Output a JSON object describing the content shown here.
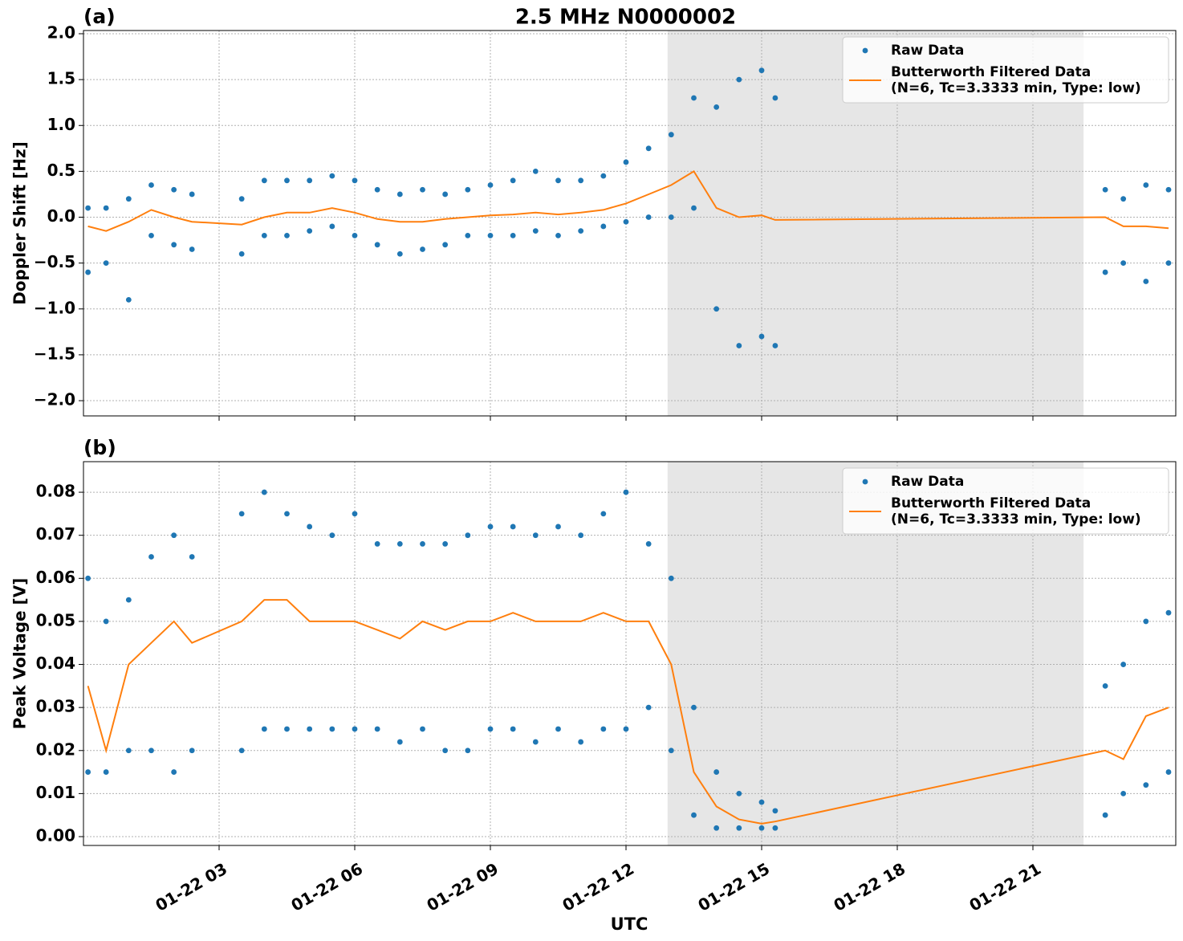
{
  "chart_data": [
    {
      "type": "scatter-line",
      "title": "2.5 MHz N0000002",
      "panel_label": "(a)",
      "y_label": "Doppler Shift [Hz]",
      "xlim": [
        0,
        24.16
      ],
      "ylim": [
        -2.166,
        2.035
      ],
      "xticks": [
        3,
        6,
        9,
        12,
        15,
        18,
        21
      ],
      "yticks": [
        {
          "value": -2.0,
          "label": "−2.0"
        },
        {
          "value": -1.5,
          "label": "−1.5"
        },
        {
          "value": -1.0,
          "label": "−1.0"
        },
        {
          "value": -0.5,
          "label": "−0.5"
        },
        {
          "value": 0.0,
          "label": "0.0"
        },
        0.5,
        {
          "value": 1.0,
          "label": "1.0"
        },
        1.5,
        {
          "value": 2.0,
          "label": "2.0"
        }
      ],
      "grid": true,
      "legend": "upper right",
      "shaded_span": [
        12.92,
        22.12
      ],
      "series": [
        {
          "name": "Raw Data",
          "kind": "scatter",
          "color": "#1f77b4",
          "x": [
            0.1,
            0.1,
            0.5,
            0.5,
            1.0,
            1.0,
            1.5,
            1.5,
            2.0,
            2.0,
            2.4,
            2.4,
            3.5,
            3.5,
            4.0,
            4.0,
            4.5,
            4.5,
            5.0,
            5.0,
            5.5,
            5.5,
            6.0,
            6.0,
            6.5,
            6.5,
            7.0,
            7.0,
            7.5,
            7.5,
            8.0,
            8.0,
            8.5,
            8.5,
            9.0,
            9.0,
            9.5,
            9.5,
            10.0,
            10.0,
            10.5,
            10.5,
            11.0,
            11.0,
            11.5,
            11.5,
            12.0,
            12.0,
            12.5,
            12.5,
            13.0,
            13.0,
            13.5,
            13.5,
            14.0,
            14.0,
            14.5,
            14.5,
            15.0,
            15.0,
            15.3,
            15.3,
            22.6,
            22.6,
            23.0,
            23.0,
            23.5,
            23.5,
            24.0,
            24.0
          ],
          "values": [
            0.1,
            -0.6,
            0.1,
            -0.5,
            0.2,
            -0.9,
            0.35,
            -0.2,
            0.3,
            -0.3,
            0.25,
            -0.35,
            0.2,
            -0.4,
            0.4,
            -0.2,
            0.4,
            -0.2,
            0.4,
            -0.15,
            0.45,
            -0.1,
            0.4,
            -0.2,
            0.3,
            -0.3,
            0.25,
            -0.4,
            0.3,
            -0.35,
            0.25,
            -0.3,
            0.3,
            -0.2,
            0.35,
            -0.2,
            0.4,
            -0.2,
            0.5,
            -0.15,
            0.4,
            -0.2,
            0.4,
            -0.15,
            0.45,
            -0.1,
            0.6,
            -0.05,
            0.75,
            0.0,
            0.9,
            0.0,
            1.3,
            0.1,
            1.2,
            -1.0,
            1.5,
            -1.4,
            1.6,
            -1.3,
            1.3,
            -1.4,
            0.3,
            -0.6,
            0.2,
            -0.5,
            0.35,
            -0.7,
            0.3,
            -0.5
          ]
        },
        {
          "name": "Butterworth Filtered Data\n(N=6, Tc=3.3333 min, Type: low)",
          "kind": "line",
          "color": "#ff7f0e",
          "x": [
            0.1,
            0.5,
            1.0,
            1.5,
            2.0,
            2.4,
            3.5,
            4.0,
            4.5,
            5.0,
            5.5,
            6.0,
            6.5,
            7.0,
            7.5,
            8.0,
            8.5,
            9.0,
            9.5,
            10.0,
            10.5,
            11.0,
            11.5,
            12.0,
            12.5,
            13.0,
            13.5,
            14.0,
            14.5,
            15.0,
            15.3,
            22.6,
            23.0,
            23.5,
            24.0
          ],
          "values": [
            -0.1,
            -0.15,
            -0.05,
            0.08,
            0.0,
            -0.05,
            -0.08,
            0.0,
            0.05,
            0.05,
            0.1,
            0.05,
            -0.02,
            -0.05,
            -0.05,
            -0.02,
            0.0,
            0.02,
            0.03,
            0.05,
            0.03,
            0.05,
            0.08,
            0.15,
            0.25,
            0.35,
            0.5,
            0.1,
            0.0,
            0.02,
            -0.03,
            0.0,
            -0.1,
            -0.1,
            -0.12
          ]
        }
      ]
    },
    {
      "type": "scatter-line",
      "panel_label": "(b)",
      "y_label": "Peak Voltage [V]",
      "x_label": "UTC",
      "xlim": [
        0,
        24.16
      ],
      "ylim": [
        -0.00205,
        0.0871
      ],
      "xticks": [
        {
          "value": 3,
          "label": "01-22 03"
        },
        {
          "value": 6,
          "label": "01-22 06"
        },
        {
          "value": 9,
          "label": "01-22 09"
        },
        {
          "value": 12,
          "label": "01-22 12"
        },
        {
          "value": 15,
          "label": "01-22 15"
        },
        {
          "value": 18,
          "label": "01-22 18"
        },
        {
          "value": 21,
          "label": "01-22 21"
        }
      ],
      "yticks": [
        {
          "value": 0.0,
          "label": "0.00"
        },
        0.01,
        0.02,
        0.03,
        0.04,
        0.05,
        0.06,
        0.07,
        0.08
      ],
      "grid": true,
      "legend": "upper right",
      "shaded_span": [
        12.92,
        22.12
      ],
      "series": [
        {
          "name": "Raw Data",
          "kind": "scatter",
          "color": "#1f77b4",
          "x": [
            0.1,
            0.1,
            0.5,
            0.5,
            1.0,
            1.0,
            1.5,
            1.5,
            2.0,
            2.0,
            2.4,
            2.4,
            3.5,
            3.5,
            4.0,
            4.0,
            4.5,
            4.5,
            5.0,
            5.0,
            5.5,
            5.5,
            6.0,
            6.0,
            6.5,
            6.5,
            7.0,
            7.0,
            7.5,
            7.5,
            8.0,
            8.0,
            8.5,
            8.5,
            9.0,
            9.0,
            9.5,
            9.5,
            10.0,
            10.0,
            10.5,
            10.5,
            11.0,
            11.0,
            11.5,
            11.5,
            12.0,
            12.0,
            12.5,
            12.5,
            13.0,
            13.0,
            13.5,
            13.5,
            14.0,
            14.0,
            14.5,
            14.5,
            15.0,
            15.0,
            15.3,
            15.3,
            22.6,
            22.6,
            23.0,
            23.0,
            23.5,
            23.5,
            24.0,
            24.0
          ],
          "values": [
            0.06,
            0.015,
            0.05,
            0.015,
            0.055,
            0.02,
            0.065,
            0.02,
            0.07,
            0.015,
            0.065,
            0.02,
            0.075,
            0.02,
            0.08,
            0.025,
            0.075,
            0.025,
            0.072,
            0.025,
            0.07,
            0.025,
            0.075,
            0.025,
            0.068,
            0.025,
            0.068,
            0.022,
            0.068,
            0.025,
            0.068,
            0.02,
            0.07,
            0.02,
            0.072,
            0.025,
            0.072,
            0.025,
            0.07,
            0.022,
            0.072,
            0.025,
            0.07,
            0.022,
            0.075,
            0.025,
            0.08,
            0.025,
            0.068,
            0.03,
            0.06,
            0.02,
            0.03,
            0.005,
            0.015,
            0.002,
            0.01,
            0.002,
            0.008,
            0.002,
            0.006,
            0.002,
            0.035,
            0.005,
            0.04,
            0.01,
            0.05,
            0.012,
            0.052,
            0.015
          ]
        },
        {
          "name": "Butterworth Filtered Data\n(N=6, Tc=3.3333 min, Type: low)",
          "kind": "line",
          "color": "#ff7f0e",
          "x": [
            0.1,
            0.5,
            1.0,
            1.5,
            2.0,
            2.4,
            3.5,
            4.0,
            4.5,
            5.0,
            5.5,
            6.0,
            6.5,
            7.0,
            7.5,
            8.0,
            8.5,
            9.0,
            9.5,
            10.0,
            10.5,
            11.0,
            11.5,
            12.0,
            12.5,
            13.0,
            13.5,
            14.0,
            14.5,
            15.0,
            15.3,
            22.6,
            23.0,
            23.5,
            24.0
          ],
          "values": [
            0.035,
            0.02,
            0.04,
            0.045,
            0.05,
            0.045,
            0.05,
            0.055,
            0.055,
            0.05,
            0.05,
            0.05,
            0.048,
            0.046,
            0.05,
            0.048,
            0.05,
            0.05,
            0.052,
            0.05,
            0.05,
            0.05,
            0.052,
            0.05,
            0.05,
            0.04,
            0.015,
            0.007,
            0.004,
            0.003,
            0.0035,
            0.02,
            0.018,
            0.028,
            0.03
          ]
        }
      ]
    }
  ]
}
